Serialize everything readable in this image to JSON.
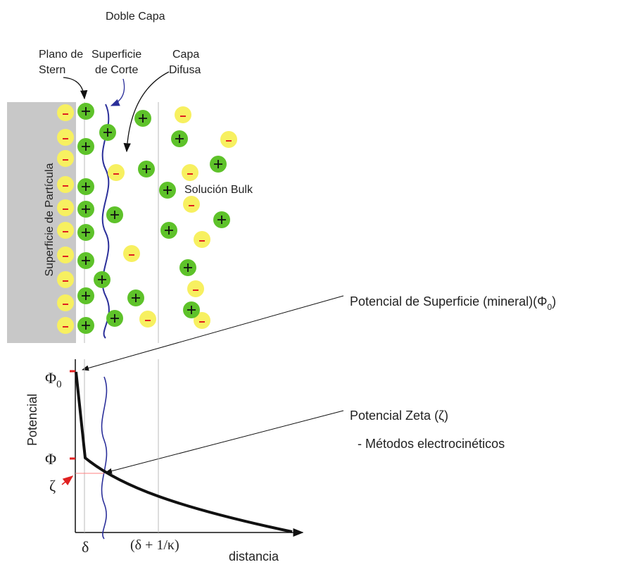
{
  "title": "Doble Capa",
  "top_labels": {
    "stern": [
      "Plano de",
      "Stern"
    ],
    "shear": [
      "Superficie",
      "de Corte"
    ],
    "diffuse": [
      "Capa",
      "Difusa"
    ]
  },
  "particle_surface": "Superficie de Partícula",
  "bulk": "Solución Bulk",
  "surface_potential": {
    "text": "Potencial de Superficie (mineral)(Φ",
    "sub": "0",
    "tail": ")"
  },
  "zeta_potential": {
    "text": "Potencial Zeta  (ζ)",
    "note": "-  Métodos electrocinéticos"
  },
  "plot": {
    "y_label": "Potencial",
    "phi0": {
      "symbol": "Φ",
      "sub": "0"
    },
    "phi": "Φ",
    "zeta": "ζ",
    "delta": "δ",
    "debye": "(δ + 1/κ)",
    "x_label": "distancia"
  }
}
